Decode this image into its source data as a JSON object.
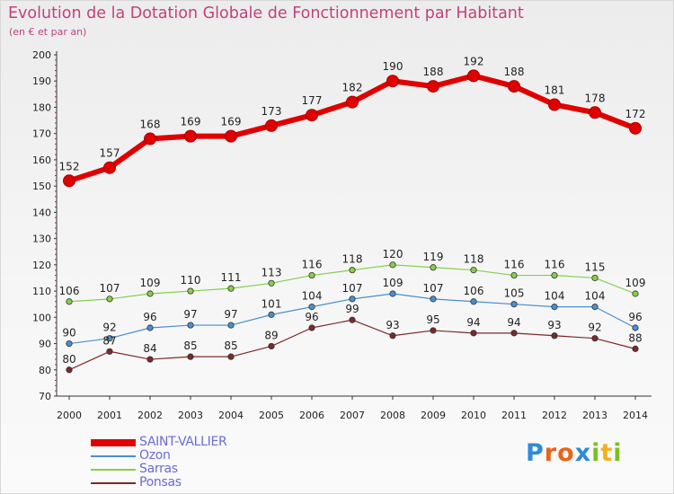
{
  "title": "Evolution de la Dotation Globale de Fonctionnement par Habitant",
  "subtitle": "(en € et par an)",
  "logo": {
    "text": "Proxiti",
    "colors": [
      "#2e8bd6",
      "#e8641a",
      "#e8641a",
      "#2e8bd6",
      "#7cc020",
      "#f2b21c",
      "#7cc020"
    ]
  },
  "chart_data": {
    "type": "line",
    "title": "Evolution de la Dotation Globale de Fonctionnement par Habitant",
    "subtitle": "(en € et par an)",
    "xlabel": "",
    "ylabel": "",
    "x": [
      "2000",
      "2001",
      "2002",
      "2003",
      "2004",
      "2005",
      "2006",
      "2007",
      "2008",
      "2009",
      "2010",
      "2011",
      "2012",
      "2013",
      "2014"
    ],
    "ylim": [
      70,
      200
    ],
    "yticks": [
      70,
      80,
      90,
      100,
      110,
      120,
      130,
      140,
      150,
      160,
      170,
      180,
      190,
      200
    ],
    "grid": false,
    "legend_position": "bottom-left",
    "series": [
      {
        "name": "SAINT-VALLIER",
        "color": "#e00000",
        "emphasis": true,
        "values": [
          152,
          157,
          168,
          169,
          169,
          173,
          177,
          182,
          190,
          188,
          192,
          188,
          181,
          178,
          172
        ]
      },
      {
        "name": "Ozon",
        "color": "#4a8fcf",
        "emphasis": false,
        "values": [
          90,
          92,
          96,
          97,
          97,
          101,
          104,
          107,
          109,
          107,
          106,
          105,
          104,
          104,
          96
        ]
      },
      {
        "name": "Sarras",
        "color": "#86cf4a",
        "emphasis": false,
        "values": [
          106,
          107,
          109,
          110,
          111,
          113,
          116,
          118,
          120,
          119,
          118,
          116,
          116,
          115,
          109
        ]
      },
      {
        "name": "Ponsas",
        "color": "#7a2a2a",
        "emphasis": false,
        "values": [
          80,
          87,
          84,
          85,
          85,
          89,
          96,
          99,
          93,
          95,
          94,
          94,
          93,
          92,
          88
        ]
      }
    ]
  }
}
